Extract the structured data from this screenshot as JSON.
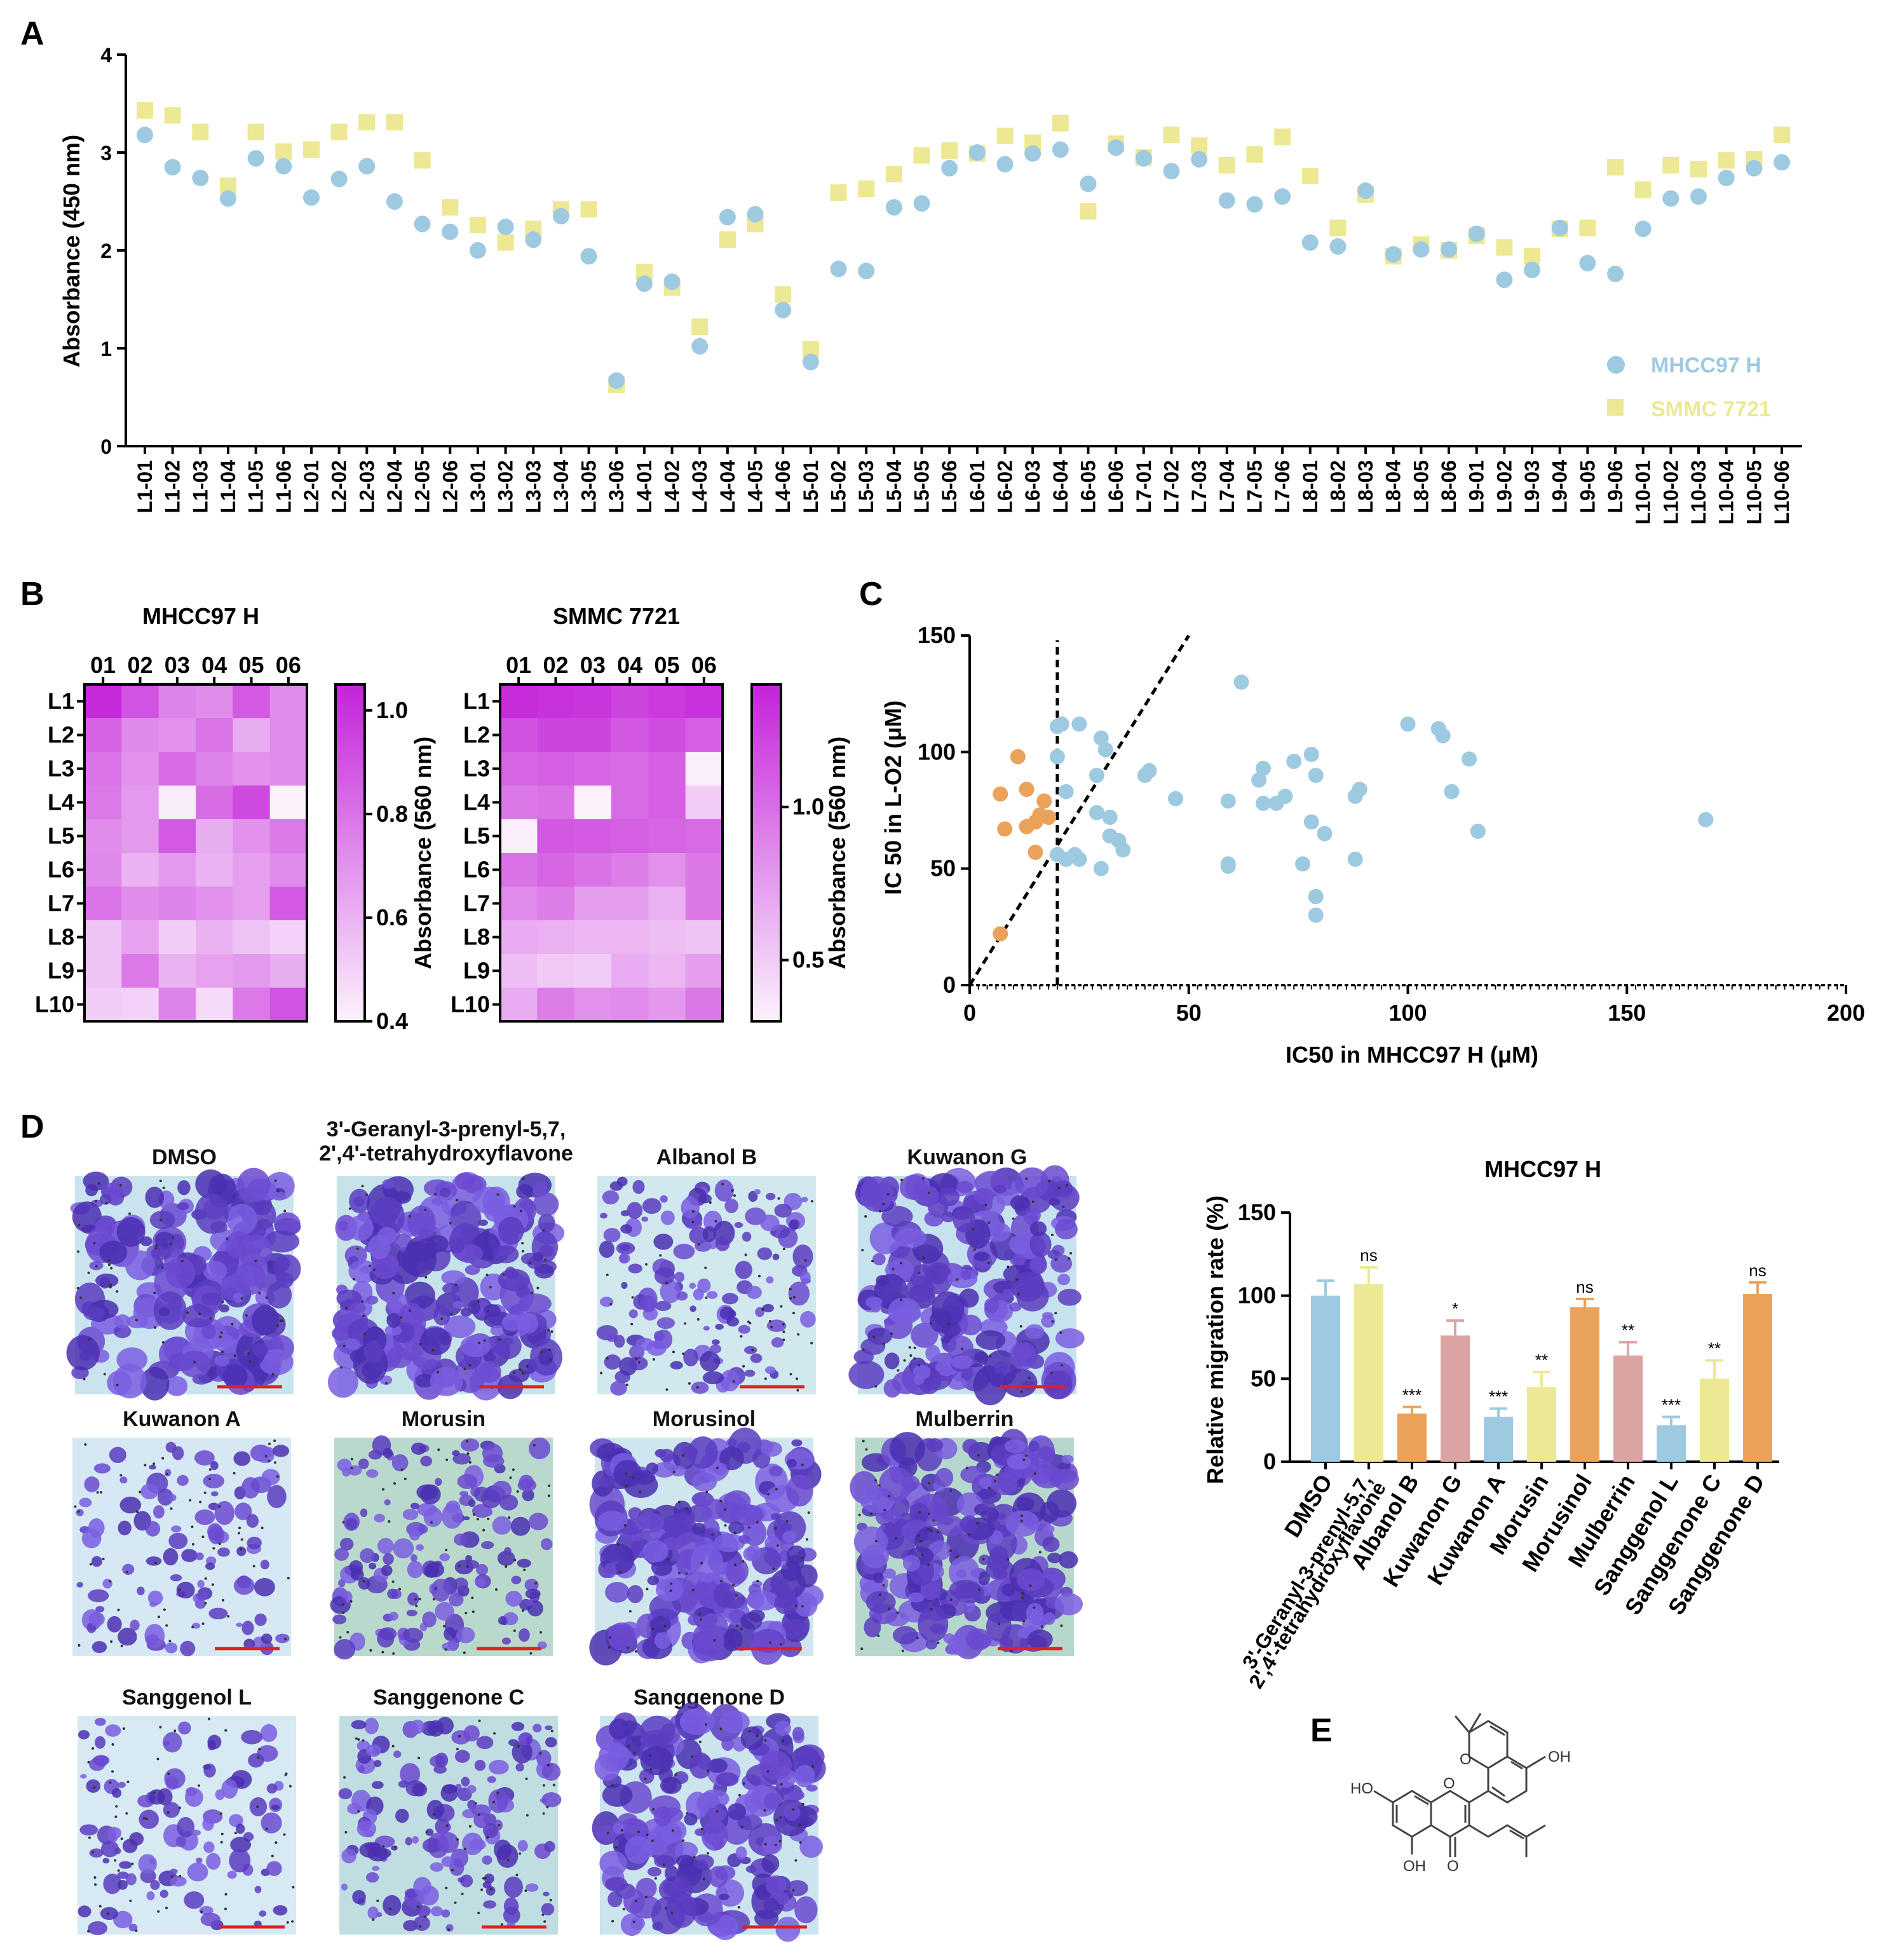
{
  "panel_labels": {
    "a": "A",
    "b": "B",
    "c": "C",
    "d": "D",
    "e": "E"
  },
  "colors": {
    "blue": "#9ecae1",
    "yellow": "#ece893",
    "orange": "#eba25a",
    "pink": "#dba4a2",
    "heat_low": "#f7e3f9",
    "heat_high": "#c423d9"
  },
  "chart_data": [
    {
      "id": "A",
      "type": "scatter",
      "title": "",
      "xlabel": "",
      "ylabel": "Absorbance (450 nm)",
      "ylim": [
        0,
        4
      ],
      "yticks": [
        "0",
        "1",
        "2",
        "3",
        "4"
      ],
      "categories": [
        "L1-01",
        "L1-02",
        "L1-03",
        "L1-04",
        "L1-05",
        "L1-06",
        "L2-01",
        "L2-02",
        "L2-03",
        "L2-04",
        "L2-05",
        "L2-06",
        "L3-01",
        "L3-02",
        "L3-03",
        "L3-04",
        "L3-05",
        "L3-06",
        "L4-01",
        "L4-02",
        "L4-03",
        "L4-04",
        "L4-05",
        "L4-06",
        "L5-01",
        "L5-02",
        "L5-03",
        "L5-04",
        "L5-05",
        "L5-06",
        "L6-01",
        "L6-02",
        "L6-03",
        "L6-04",
        "L6-05",
        "L6-06",
        "L7-01",
        "L7-02",
        "L7-03",
        "L7-04",
        "L7-05",
        "L7-06",
        "L8-01",
        "L8-02",
        "L8-03",
        "L8-04",
        "L8-05",
        "L8-06",
        "L9-01",
        "L9-02",
        "L9-03",
        "L9-04",
        "L9-05",
        "L9-06",
        "L10-01",
        "L10-02",
        "L10-03",
        "L10-04",
        "L10-05",
        "L10-06"
      ],
      "legend": "right",
      "series": [
        {
          "name": "MHCC97 H",
          "marker": "circle",
          "values": [
            3.18,
            2.85,
            2.74,
            2.53,
            2.94,
            2.86,
            2.54,
            2.73,
            2.86,
            2.5,
            2.27,
            2.19,
            2.0,
            2.24,
            2.11,
            2.35,
            1.94,
            0.67,
            1.66,
            1.68,
            1.02,
            2.34,
            2.37,
            1.39,
            0.86,
            1.81,
            1.79,
            2.44,
            2.48,
            2.84,
            3.0,
            2.88,
            2.99,
            3.03,
            2.68,
            3.05,
            2.94,
            2.81,
            2.93,
            2.51,
            2.47,
            2.55,
            2.08,
            2.04,
            2.61,
            1.96,
            2.01,
            2.01,
            2.17,
            1.7,
            1.8,
            2.23,
            1.87,
            1.76,
            2.22,
            2.53,
            2.55,
            2.74,
            2.84,
            2.9
          ]
        },
        {
          "name": "SMMC 7721",
          "marker": "square",
          "values": [
            3.43,
            3.38,
            3.21,
            2.66,
            3.21,
            3.01,
            3.03,
            3.21,
            3.31,
            3.31,
            2.92,
            2.44,
            2.26,
            2.08,
            2.22,
            2.42,
            2.42,
            0.63,
            1.78,
            1.62,
            1.22,
            2.11,
            2.27,
            1.55,
            0.99,
            2.59,
            2.63,
            2.78,
            2.97,
            3.02,
            2.99,
            3.17,
            3.1,
            3.3,
            2.4,
            3.09,
            2.95,
            3.18,
            3.07,
            2.87,
            2.98,
            3.16,
            2.76,
            2.23,
            2.57,
            1.94,
            2.06,
            2.0,
            2.15,
            2.03,
            1.94,
            2.22,
            2.23,
            2.85,
            2.62,
            2.87,
            2.83,
            2.92,
            2.93,
            3.18
          ]
        }
      ]
    },
    {
      "id": "B1",
      "type": "heatmap",
      "title": "MHCC97 H",
      "columns": [
        "01",
        "02",
        "03",
        "04",
        "05",
        "06"
      ],
      "rows": [
        "L1",
        "L2",
        "L3",
        "L4",
        "L5",
        "L6",
        "L7",
        "L8",
        "L9",
        "L10"
      ],
      "colorbar_label": "Absorbance (560 nm)",
      "colorbar_range": [
        0.4,
        1.05
      ],
      "colorbar_ticks": [
        "0.4",
        "0.6",
        "0.8",
        "1.0"
      ],
      "values": [
        [
          1.03,
          0.9,
          0.75,
          0.72,
          0.88,
          0.72
        ],
        [
          0.85,
          0.73,
          0.7,
          0.8,
          0.62,
          0.72
        ],
        [
          0.8,
          0.7,
          0.82,
          0.75,
          0.7,
          0.72
        ],
        [
          0.78,
          0.68,
          0.42,
          0.82,
          0.93,
          0.4
        ],
        [
          0.72,
          0.68,
          0.88,
          0.62,
          0.7,
          0.78
        ],
        [
          0.73,
          0.6,
          0.68,
          0.6,
          0.66,
          0.72
        ],
        [
          0.8,
          0.72,
          0.75,
          0.7,
          0.66,
          0.88
        ],
        [
          0.55,
          0.65,
          0.52,
          0.6,
          0.55,
          0.5
        ],
        [
          0.55,
          0.78,
          0.6,
          0.65,
          0.68,
          0.62
        ],
        [
          0.52,
          0.5,
          0.75,
          0.48,
          0.78,
          0.9
        ]
      ]
    },
    {
      "id": "B2",
      "type": "heatmap",
      "title": "SMMC 7721",
      "columns": [
        "01",
        "02",
        "03",
        "04",
        "05",
        "06"
      ],
      "rows": [
        "L1",
        "L2",
        "L3",
        "L4",
        "L5",
        "L6",
        "L7",
        "L8",
        "L9",
        "L10"
      ],
      "colorbar_label": "Absorbance (560 nm)",
      "colorbar_range": [
        0.3,
        1.4
      ],
      "colorbar_ticks": [
        "0.5",
        "1.0"
      ],
      "values": [
        [
          1.35,
          1.32,
          1.3,
          1.22,
          1.28,
          1.32
        ],
        [
          1.15,
          1.22,
          1.22,
          1.12,
          1.18,
          1.08
        ],
        [
          1.05,
          1.08,
          1.05,
          1.02,
          1.08,
          0.32
        ],
        [
          0.95,
          0.98,
          0.3,
          1.02,
          1.08,
          0.5
        ],
        [
          0.32,
          1.12,
          1.1,
          1.08,
          1.05,
          1.02
        ],
        [
          0.98,
          1.05,
          0.98,
          0.92,
          0.82,
          0.95
        ],
        [
          0.85,
          0.92,
          0.75,
          0.75,
          0.65,
          0.95
        ],
        [
          0.68,
          0.65,
          0.62,
          0.62,
          0.58,
          0.55
        ],
        [
          0.58,
          0.52,
          0.5,
          0.68,
          0.62,
          0.75
        ],
        [
          0.68,
          0.92,
          0.82,
          0.85,
          0.78,
          0.95
        ]
      ]
    },
    {
      "id": "C",
      "type": "scatter",
      "title": "",
      "xlabel": "IC50 in MHCC97 H (μM)",
      "ylabel": "IC 50 in L-O2 (μM)",
      "xlim": [
        0,
        200
      ],
      "ylim": [
        0,
        150
      ],
      "xticks": [
        "0",
        "50",
        "100",
        "150",
        "200"
      ],
      "yticks": [
        "0",
        "50",
        "100",
        "150"
      ],
      "threshold_x": 20,
      "diagonal": [
        [
          0,
          0
        ],
        [
          50,
          150
        ]
      ],
      "series": [
        {
          "name": "selected",
          "color": "orange",
          "points": [
            [
              7,
              22
            ],
            [
              7,
              82
            ],
            [
              8,
              67
            ],
            [
              11,
              98
            ],
            [
              13,
              84
            ],
            [
              13,
              68
            ],
            [
              15,
              70
            ],
            [
              15,
              57
            ],
            [
              16,
              73
            ],
            [
              17,
              79
            ],
            [
              18,
              72
            ]
          ]
        },
        {
          "name": "other",
          "color": "blue",
          "points": [
            [
              20,
              111
            ],
            [
              21,
              112
            ],
            [
              20,
              98
            ],
            [
              22,
              83
            ],
            [
              20,
              56
            ],
            [
              22,
              54
            ],
            [
              25,
              112
            ],
            [
              25,
              54
            ],
            [
              24,
              56
            ],
            [
              29,
              90
            ],
            [
              30,
              106
            ],
            [
              31,
              101
            ],
            [
              29,
              74
            ],
            [
              32,
              72
            ],
            [
              30,
              50
            ],
            [
              32,
              64
            ],
            [
              34,
              62
            ],
            [
              35,
              58
            ],
            [
              40,
              90
            ],
            [
              41,
              92
            ],
            [
              47,
              80
            ],
            [
              59,
              79
            ],
            [
              59,
              52
            ],
            [
              59,
              51
            ],
            [
              62,
              130
            ],
            [
              66,
              88
            ],
            [
              67,
              93
            ],
            [
              67,
              78
            ],
            [
              70,
              78
            ],
            [
              72,
              81
            ],
            [
              74,
              96
            ],
            [
              76,
              52
            ],
            [
              78,
              99
            ],
            [
              78,
              70
            ],
            [
              79,
              90
            ],
            [
              81,
              65
            ],
            [
              79,
              38
            ],
            [
              79,
              30
            ],
            [
              88,
              81
            ],
            [
              89,
              84
            ],
            [
              88,
              54
            ],
            [
              100,
              112
            ],
            [
              107,
              110
            ],
            [
              108,
              107
            ],
            [
              110,
              83
            ],
            [
              114,
              97
            ],
            [
              116,
              66
            ],
            [
              168,
              71
            ]
          ]
        }
      ]
    },
    {
      "id": "D",
      "type": "bar",
      "title": "MHCC97 H",
      "xlabel": "",
      "ylabel": "Relative migration rate (%)",
      "ylim": [
        0,
        150
      ],
      "yticks": [
        "0",
        "50",
        "100",
        "150"
      ],
      "categories": [
        "DMSO",
        "3'-Geranyl-3-prenyl-5,7, 2',4'-tetrahydroxyflavone",
        "Albanol B",
        "Kuwanon G",
        "Kuwanon A",
        "Morusin",
        "Morusinol",
        "Mulberrin",
        "Sanggenol L",
        "Sanggenone C",
        "Sanggenone D"
      ],
      "values": [
        100,
        107,
        29,
        76,
        27,
        45,
        93,
        64,
        22,
        50,
        101
      ],
      "errors": [
        9,
        10,
        4,
        9,
        5,
        9,
        5,
        8,
        5,
        11,
        7
      ],
      "bar_colors": [
        "blue",
        "yellow",
        "orange",
        "pink",
        "blue",
        "yellow",
        "orange",
        "pink",
        "blue",
        "yellow",
        "orange"
      ],
      "significance": [
        "",
        "ns",
        "***",
        "*",
        "***",
        "**",
        "ns",
        "**",
        "***",
        "**",
        "ns"
      ]
    }
  ],
  "micrographs": {
    "labels": [
      "DMSO",
      "3'-Geranyl-3-prenyl-5,7,\n2',4'-tetrahydroxyflavone",
      "Albanol B",
      "Kuwanon G",
      "Kuwanon A",
      "Morusin",
      "Morusinol",
      "Mulberrin",
      "Sanggenol L",
      "Sanggenone C",
      "Sanggenone D"
    ],
    "label_lines_1": [
      "DMSO",
      "3'-Geranyl-3-prenyl-5,7,",
      "Albanol B",
      "Kuwanon G",
      "Kuwanon A",
      "Morusin",
      "Morusinol",
      "Mulberrin",
      "Sanggenol L",
      "Sanggenone C",
      "Sanggenone D"
    ],
    "label_line_2": "2',4'-tetrahydroxyflavone"
  },
  "structure_atoms": {
    "o_ring": "O",
    "oh_top": "OH",
    "ho_left": "HO",
    "o_center": "O",
    "oh_bottom": "OH",
    "o_keto": "O"
  }
}
